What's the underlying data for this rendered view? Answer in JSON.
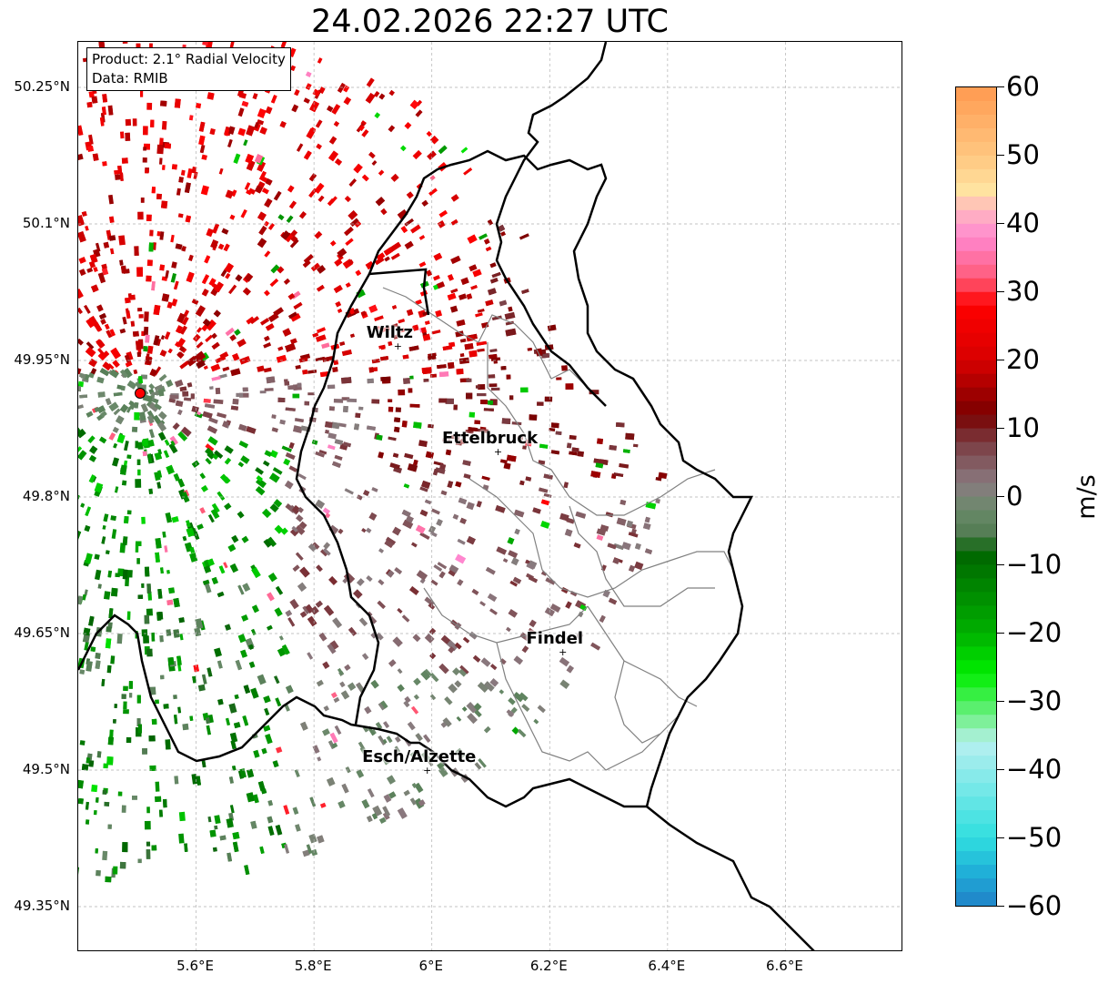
{
  "title": "24.02.2026 22:27 UTC",
  "info_box": {
    "product": "Product: 2.1° Radial Velocity",
    "source": "Data: RMIB"
  },
  "lat_ticks": [
    {
      "value": 50.25,
      "label": "50.25°N"
    },
    {
      "value": 50.1,
      "label": "50.1°N"
    },
    {
      "value": 49.95,
      "label": "49.95°N"
    },
    {
      "value": 49.8,
      "label": "49.8°N"
    },
    {
      "value": 49.65,
      "label": "49.65°N"
    },
    {
      "value": 49.5,
      "label": "49.5°N"
    },
    {
      "value": 49.35,
      "label": "49.35°N"
    }
  ],
  "lon_ticks": [
    {
      "value": 5.6,
      "label": "5.6°E"
    },
    {
      "value": 5.8,
      "label": "5.8°E"
    },
    {
      "value": 6.0,
      "label": "6°E"
    },
    {
      "value": 6.2,
      "label": "6.2°E"
    },
    {
      "value": 6.4,
      "label": "6.4°E"
    },
    {
      "value": 6.6,
      "label": "6.6°E"
    }
  ],
  "map_extent": {
    "lon_min": 5.4,
    "lon_max": 6.8,
    "lat_min": 49.3,
    "lat_max": 50.3
  },
  "cities": [
    {
      "name": "Wiltz",
      "lon": 5.93,
      "lat": 49.966
    },
    {
      "name": "Ettelbruck",
      "lon": 6.1,
      "lat": 49.85
    },
    {
      "name": "Findel",
      "lon": 6.21,
      "lat": 49.63
    },
    {
      "name": "Esch/Alzette",
      "lon": 5.98,
      "lat": 49.5
    }
  ],
  "radar_site": {
    "lon": 5.505,
    "lat": 49.914
  },
  "colorbar": {
    "unit": "m/s",
    "min": -60,
    "max": 60,
    "ticks": [
      60,
      50,
      40,
      30,
      20,
      10,
      0,
      -10,
      -20,
      -30,
      -40,
      -50,
      -60
    ],
    "tick_labels": [
      "60",
      "50",
      "40",
      "30",
      "20",
      "10",
      "0",
      "−10",
      "−20",
      "−30",
      "−40",
      "−50",
      "−60"
    ],
    "stops": [
      {
        "v": 60,
        "color": "#ff9a50"
      },
      {
        "v": 50,
        "color": "#ffc680"
      },
      {
        "v": 45,
        "color": "#ffe3a0"
      },
      {
        "v": 42,
        "color": "#ffb8c0"
      },
      {
        "v": 38,
        "color": "#ff88d0"
      },
      {
        "v": 32,
        "color": "#ff5a78"
      },
      {
        "v": 28,
        "color": "#ff0000"
      },
      {
        "v": 20,
        "color": "#d80000"
      },
      {
        "v": 12,
        "color": "#7a0000"
      },
      {
        "v": 8,
        "color": "#7a3a40"
      },
      {
        "v": 2,
        "color": "#8a7a80"
      },
      {
        "v": -2,
        "color": "#6a8a6a"
      },
      {
        "v": -6,
        "color": "#4f7a4f"
      },
      {
        "v": -8,
        "color": "#006400"
      },
      {
        "v": -20,
        "color": "#00b000"
      },
      {
        "v": -26,
        "color": "#00ee00"
      },
      {
        "v": -34,
        "color": "#90f0b0"
      },
      {
        "v": -36,
        "color": "#b8f0f0"
      },
      {
        "v": -50,
        "color": "#30dfdf"
      },
      {
        "v": -55,
        "color": "#20b0d8"
      },
      {
        "v": -60,
        "color": "#2080c8"
      }
    ]
  },
  "colors": {
    "border_country": "#000000",
    "border_canton": "#808080",
    "grid": "#b0b0b0",
    "radar_site": "#ff0000"
  }
}
